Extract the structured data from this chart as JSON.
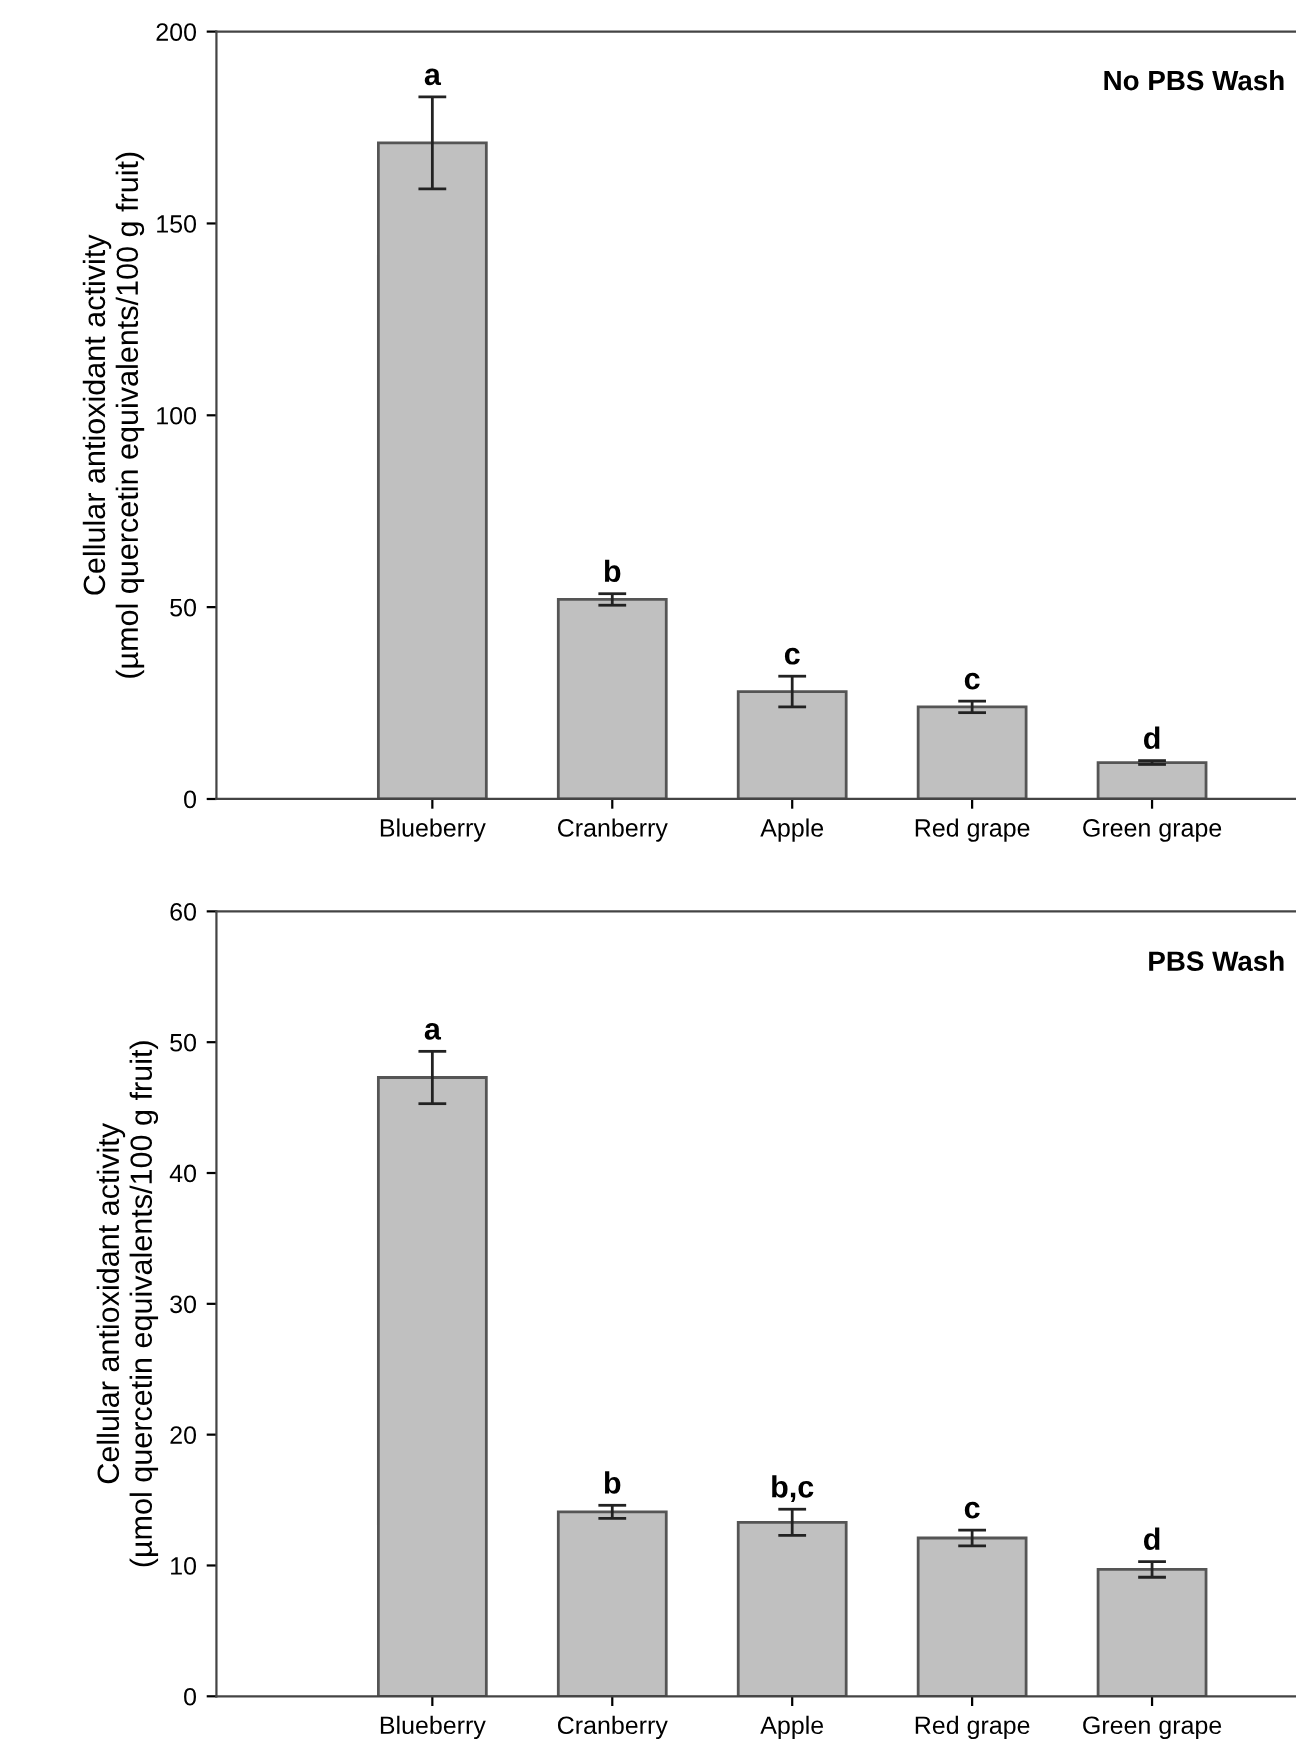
{
  "chart_data": [
    {
      "type": "bar",
      "ylabel": "Cellular antioxidant activity\n(µmol quercetin equivalents/100 g fruit)",
      "categories": [
        "Blueberry",
        "Cranberry",
        "Apple",
        "Red grape",
        "Green grape"
      ],
      "values": [
        171,
        52,
        28,
        24,
        9.5
      ],
      "errors": [
        12,
        1.5,
        4,
        1.5,
        0.5
      ],
      "color": "#c0c0c0",
      "ylim": [
        0,
        200
      ],
      "yticks": [
        0,
        50,
        100,
        150,
        200
      ],
      "grid": false,
      "annotations": [
        "No PBS Wash",
        {
          "text": "a",
          "x": "Blueberry",
          "y": 183
        },
        {
          "text": "b",
          "x": "Cranberry",
          "y": 53.5
        },
        {
          "text": "c",
          "x": "Apple",
          "y": 32
        },
        {
          "text": "c",
          "x": "Red grape",
          "y": 25.5
        },
        {
          "text": "d",
          "x": "Green grape",
          "y": 10
        }
      ]
    },
    {
      "type": "bar",
      "ylabel": "Cellular antioxidant activity\n(µmol quercetin equivalents/100 g fruit)",
      "categories": [
        "Blueberry",
        "Cranberry",
        "Apple",
        "Red grape",
        "Green grape"
      ],
      "values": [
        47.3,
        14.1,
        13.3,
        12.1,
        9.7
      ],
      "errors": [
        2,
        0.5,
        1,
        0.6,
        0.6
      ],
      "color": "#c0c0c0",
      "ylim": [
        0,
        60
      ],
      "yticks": [
        0,
        10,
        20,
        30,
        40,
        50,
        60
      ],
      "grid": false,
      "annotations": [
        "PBS Wash",
        {
          "text": "a",
          "x": "Blueberry",
          "y": 49.3
        },
        {
          "text": "b",
          "x": "Cranberry",
          "y": 14.6
        },
        {
          "text": "b,c",
          "x": "Apple",
          "y": 14.3
        },
        {
          "text": "c",
          "x": "Red grape",
          "y": 12.7
        },
        {
          "text": "d",
          "x": "Green grape",
          "y": 10.3
        }
      ]
    }
  ]
}
